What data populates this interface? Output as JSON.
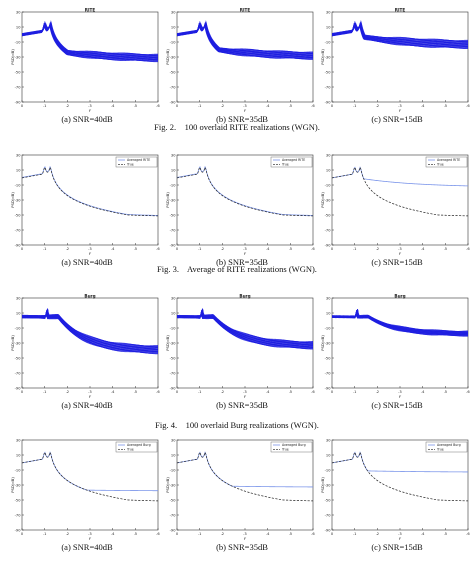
{
  "figures": [
    {
      "caption": "Fig. 2.    100 overlaid RITE realizations (WGN)."
    },
    {
      "caption": "Fig. 3.    Average of RITE realizations (WGN)."
    },
    {
      "caption": "Fig. 4.    100 overlaid Burg realizations (WGN)."
    },
    {
      "caption": ""
    }
  ],
  "colors": {
    "realization": "#1f1fe0",
    "averaged": "#7b95ea",
    "true": "#222222",
    "axis": "#333333"
  },
  "chart_data": [
    {
      "type": "line",
      "mode": "overlaid",
      "row": 0,
      "col": 0,
      "title": "RITE",
      "subtitle": "(a) SNR=40dB",
      "xlabel": "F",
      "ylabel": "PSD(dB)",
      "xlim": [
        0,
        0.6
      ],
      "ylim": [
        -90,
        30
      ],
      "xticks": [
        0,
        0.1,
        0.2,
        0.3,
        0.4,
        0.5,
        0.6
      ],
      "yticks": [
        30,
        10,
        -10,
        -30,
        -50,
        -70,
        -90
      ],
      "peaks": [
        0.1,
        0.125
      ],
      "floor": -33,
      "spread": 9,
      "legend": []
    },
    {
      "type": "line",
      "mode": "overlaid",
      "row": 0,
      "col": 1,
      "title": "RITE",
      "subtitle": "(b) SNR=35dB",
      "xlabel": "F",
      "ylabel": "PSD(dB)",
      "xlim": [
        0,
        0.6
      ],
      "ylim": [
        -90,
        30
      ],
      "xticks": [
        0,
        0.1,
        0.2,
        0.3,
        0.4,
        0.5,
        0.6
      ],
      "yticks": [
        30,
        10,
        -10,
        -30,
        -50,
        -70,
        -90
      ],
      "peaks": [
        0.1,
        0.125
      ],
      "floor": -30,
      "spread": 9,
      "legend": []
    },
    {
      "type": "line",
      "mode": "overlaid",
      "row": 0,
      "col": 2,
      "title": "RITE",
      "subtitle": "(c) SNR=15dB",
      "xlabel": "F",
      "ylabel": "PSD(dB)",
      "xlim": [
        0,
        0.6
      ],
      "ylim": [
        -90,
        30
      ],
      "xticks": [
        0,
        0.1,
        0.2,
        0.3,
        0.4,
        0.5,
        0.6
      ],
      "yticks": [
        30,
        10,
        -10,
        -30,
        -50,
        -70,
        -90
      ],
      "peaks": [
        0.1,
        0.125
      ],
      "floor": -15,
      "spread": 10,
      "legend": []
    },
    {
      "type": "line",
      "mode": "average",
      "row": 1,
      "col": 0,
      "title": "",
      "subtitle": "(a) SNR=40dB",
      "xlabel": "F",
      "ylabel": "PSD(dB)",
      "xlim": [
        0,
        0.6
      ],
      "ylim": [
        -90,
        30
      ],
      "xticks": [
        0,
        0.1,
        0.2,
        0.3,
        0.4,
        0.5,
        0.6
      ],
      "yticks": [
        30,
        10,
        -10,
        -30,
        -50,
        -70,
        -90
      ],
      "peaks": [
        0.1,
        0.125
      ],
      "floor": -53,
      "legend": [
        "Averaged RITE",
        "True"
      ]
    },
    {
      "type": "line",
      "mode": "average",
      "row": 1,
      "col": 1,
      "title": "",
      "subtitle": "(b) SNR=35dB",
      "xlabel": "F",
      "ylabel": "PSD(dB)",
      "xlim": [
        0,
        0.6
      ],
      "ylim": [
        -90,
        30
      ],
      "xticks": [
        0,
        0.1,
        0.2,
        0.3,
        0.4,
        0.5,
        0.6
      ],
      "yticks": [
        30,
        10,
        -10,
        -30,
        -50,
        -70,
        -90
      ],
      "peaks": [
        0.1,
        0.125
      ],
      "floor": -53,
      "legend": [
        "Averaged RITE",
        "True"
      ]
    },
    {
      "type": "line",
      "mode": "average",
      "row": 1,
      "col": 2,
      "title": "",
      "subtitle": "(c) SNR=15dB",
      "xlabel": "F",
      "ylabel": "PSD(dB)",
      "xlim": [
        0,
        0.6
      ],
      "ylim": [
        -90,
        30
      ],
      "xticks": [
        0,
        0.1,
        0.2,
        0.3,
        0.4,
        0.5,
        0.6
      ],
      "yticks": [
        30,
        10,
        -10,
        -30,
        -50,
        -70,
        -90
      ],
      "peaks": [
        0.1,
        0.125
      ],
      "floor": -13,
      "legend": [
        "Averaged RITE",
        "True"
      ]
    },
    {
      "type": "line",
      "mode": "overlaid",
      "row": 2,
      "col": 0,
      "title": "Burg",
      "subtitle": "(a) SNR=40dB",
      "xlabel": "F",
      "ylabel": "PSD(dB)",
      "xlim": [
        0,
        0.6
      ],
      "ylim": [
        -90,
        30
      ],
      "xticks": [
        0,
        0.1,
        0.2,
        0.3,
        0.4,
        0.5,
        0.6
      ],
      "yticks": [
        30,
        10,
        -10,
        -30,
        -50,
        -70,
        -90
      ],
      "peaks": [
        0.11
      ],
      "floor": -40,
      "spread": 10,
      "legend": []
    },
    {
      "type": "line",
      "mode": "overlaid",
      "row": 2,
      "col": 1,
      "title": "Burg",
      "subtitle": "(b) SNR=35dB",
      "xlabel": "F",
      "ylabel": "PSD(dB)",
      "xlim": [
        0,
        0.6
      ],
      "ylim": [
        -90,
        30
      ],
      "xticks": [
        0,
        0.1,
        0.2,
        0.3,
        0.4,
        0.5,
        0.6
      ],
      "yticks": [
        30,
        10,
        -10,
        -30,
        -50,
        -70,
        -90
      ],
      "peaks": [
        0.11
      ],
      "floor": -34,
      "spread": 9,
      "legend": []
    },
    {
      "type": "line",
      "mode": "overlaid",
      "row": 2,
      "col": 2,
      "title": "Burg",
      "subtitle": "(c) SNR=15dB",
      "xlabel": "F",
      "ylabel": "PSD(dB)",
      "xlim": [
        0,
        0.6
      ],
      "ylim": [
        -90,
        30
      ],
      "xticks": [
        0,
        0.1,
        0.2,
        0.3,
        0.4,
        0.5,
        0.6
      ],
      "yticks": [
        30,
        10,
        -10,
        -30,
        -50,
        -70,
        -90
      ],
      "peaks": [
        0.11
      ],
      "floor": -18,
      "spread": 6,
      "legend": []
    },
    {
      "type": "line",
      "mode": "average",
      "row": 3,
      "col": 0,
      "title": "",
      "subtitle": "(a) SNR=40dB",
      "xlabel": "F",
      "ylabel": "PSD(dB)",
      "xlim": [
        0,
        0.6
      ],
      "ylim": [
        -90,
        30
      ],
      "xticks": [
        0,
        0.1,
        0.2,
        0.3,
        0.4,
        0.5,
        0.6
      ],
      "yticks": [
        30,
        10,
        -10,
        -30,
        -50,
        -70,
        -90
      ],
      "peaks": [
        0.1,
        0.125
      ],
      "floor": -53,
      "avgFloor": -38,
      "legend": [
        "Averaged Burg",
        "True"
      ]
    },
    {
      "type": "line",
      "mode": "average",
      "row": 3,
      "col": 1,
      "title": "",
      "subtitle": "(b) SNR=35dB",
      "xlabel": "F",
      "ylabel": "PSD(dB)",
      "xlim": [
        0,
        0.6
      ],
      "ylim": [
        -90,
        30
      ],
      "xticks": [
        0,
        0.1,
        0.2,
        0.3,
        0.4,
        0.5,
        0.6
      ],
      "yticks": [
        30,
        10,
        -10,
        -30,
        -50,
        -70,
        -90
      ],
      "peaks": [
        0.1,
        0.125
      ],
      "floor": -53,
      "avgFloor": -33,
      "legend": [
        "Averaged Burg",
        "True"
      ]
    },
    {
      "type": "line",
      "mode": "average",
      "row": 3,
      "col": 2,
      "title": "",
      "subtitle": "(c) SNR=15dB",
      "xlabel": "F",
      "ylabel": "PSD(dB)",
      "xlim": [
        0,
        0.6
      ],
      "ylim": [
        -90,
        30
      ],
      "xticks": [
        0,
        0.1,
        0.2,
        0.3,
        0.4,
        0.5,
        0.6
      ],
      "yticks": [
        30,
        10,
        -10,
        -30,
        -50,
        -70,
        -90
      ],
      "peaks": [
        0.1,
        0.125
      ],
      "floor": -53,
      "avgFloor": -13,
      "legend": [
        "Averaged Burg",
        "True"
      ]
    }
  ]
}
